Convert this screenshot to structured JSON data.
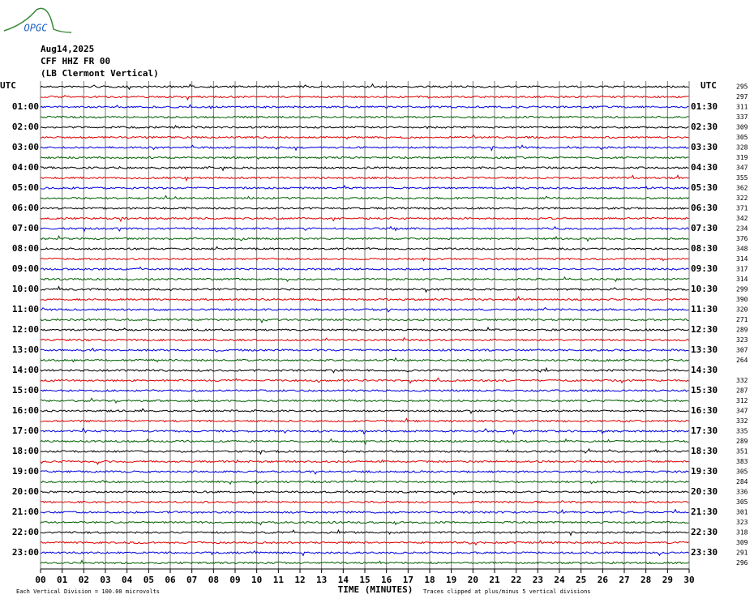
{
  "logo": "OPGC",
  "chart_data": {
    "type": "helicorder",
    "header": [
      "Aug14,2025",
      "CFF HHZ FR 00",
      "(LB Clermont Vertical)"
    ],
    "left_title": "UTC",
    "right_title": "UTC",
    "xlabel": "TIME (MINUTES)",
    "xlim": [
      0,
      30
    ],
    "xticks": [
      {
        "value": 0,
        "label": "00"
      },
      {
        "value": 1,
        "label": "01"
      },
      {
        "value": 2,
        "label": "02"
      },
      {
        "value": 3,
        "label": "03"
      },
      {
        "value": 4,
        "label": "04"
      },
      {
        "value": 5,
        "label": "05"
      },
      {
        "value": 6,
        "label": "06"
      },
      {
        "value": 7,
        "label": "07"
      },
      {
        "value": 8,
        "label": "08"
      },
      {
        "value": 9,
        "label": "09"
      },
      10,
      11,
      12,
      13,
      14,
      15,
      16,
      17,
      18,
      19,
      20,
      21,
      22,
      23,
      24,
      25,
      26,
      27,
      28,
      29,
      30
    ],
    "left_labels": [
      "01:00",
      "02:00",
      "03:00",
      "04:00",
      "05:00",
      "06:00",
      "07:00",
      "08:00",
      "09:00",
      "10:00",
      "11:00",
      "12:00",
      "13:00",
      "14:00",
      "15:00",
      "16:00",
      "17:00",
      "18:00",
      "19:00",
      "20:00",
      "21:00",
      "22:00",
      "23:00"
    ],
    "right_labels": [
      "01:30",
      "02:30",
      "03:30",
      "04:30",
      "05:30",
      "06:30",
      "07:30",
      "08:30",
      "09:30",
      "10:30",
      "11:30",
      "12:30",
      "13:30",
      "14:30",
      "15:30",
      "16:30",
      "17:30",
      "18:30",
      "19:30",
      "20:30",
      "21:30",
      "22:30",
      "23:30"
    ],
    "row_values": [
      295,
      297,
      311,
      337,
      309,
      305,
      328,
      319,
      347,
      355,
      362,
      322,
      371,
      342,
      234,
      376,
      348,
      314,
      317,
      314,
      299,
      390,
      320,
      271,
      289,
      323,
      307,
      264,
      null,
      332,
      287,
      312,
      347,
      332,
      335,
      289,
      351,
      383,
      305,
      284,
      336,
      305,
      301,
      323,
      318,
      309,
      291,
      296
    ],
    "colors": [
      "#000000",
      "#e00000",
      "#0000e0",
      "#006000"
    ],
    "footer_left": "Each Vertical Division =  100.00 microvolts",
    "footer_right": "Traces clipped at plus/minus 5 vertical divisions"
  }
}
